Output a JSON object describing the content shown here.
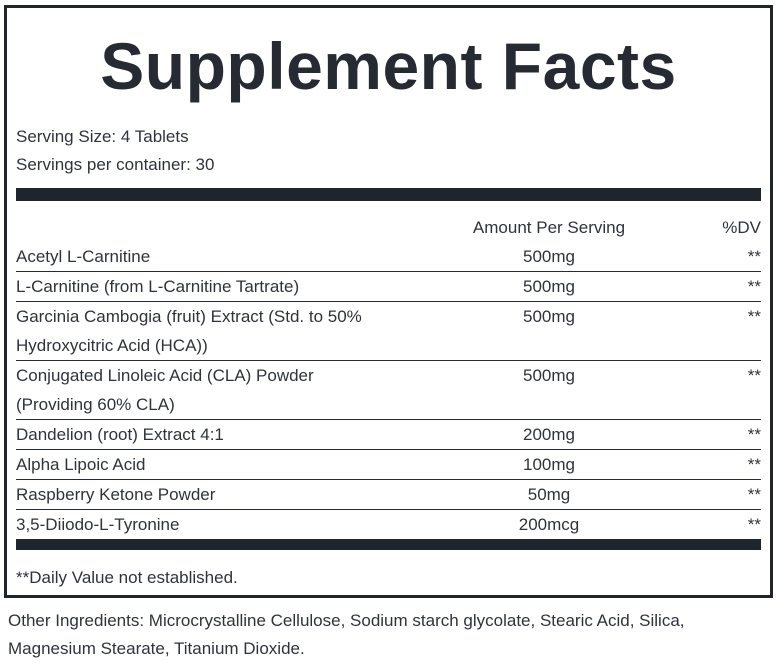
{
  "label": {
    "title": "Supplement Facts",
    "serving": {
      "size": "Serving Size: 4 Tablets",
      "per_container": "Servings per container: 30"
    },
    "table": {
      "amount_header": "Amount Per Serving",
      "dv_header": "%DV",
      "rows": [
        {
          "name": "Acetyl L-Carnitine",
          "name_lines": [
            "Acetyl L-Carnitine"
          ],
          "amount": "500mg",
          "dv": "**"
        },
        {
          "name": "L-Carnitine (from L-Carnitine Tartrate)",
          "name_lines": [
            "L-Carnitine (from L-Carnitine Tartrate)"
          ],
          "amount": "500mg",
          "dv": "**"
        },
        {
          "name": "Garcinia Cambogia (fruit) Extract (Std. to 50% Hydroxycitric Acid (HCA))",
          "name_lines": [
            "Garcinia Cambogia (fruit) Extract (Std. to 50%",
            "Hydroxycitric Acid (HCA))"
          ],
          "amount": "500mg",
          "dv": "**"
        },
        {
          "name": "Conjugated Linoleic Acid (CLA) Powder (Providing 60% CLA)",
          "name_lines": [
            "Conjugated Linoleic Acid (CLA) Powder",
            "(Providing 60% CLA)"
          ],
          "amount": "500mg",
          "dv": "**"
        },
        {
          "name": "Dandelion (root) Extract 4:1",
          "name_lines": [
            "Dandelion (root) Extract 4:1"
          ],
          "amount": "200mg",
          "dv": "**"
        },
        {
          "name": "Alpha Lipoic Acid",
          "name_lines": [
            "Alpha Lipoic Acid"
          ],
          "amount": "100mg",
          "dv": "**"
        },
        {
          "name": "Raspberry Ketone Powder",
          "name_lines": [
            "Raspberry Ketone Powder"
          ],
          "amount": "50mg",
          "dv": "**"
        },
        {
          "name": "3,5-Diiodo-L-Tyronine",
          "name_lines": [
            "3,5-Diiodo-L-Tyronine"
          ],
          "amount": "200mcg",
          "dv": "**"
        }
      ]
    },
    "footnote": "**Daily Value not established.",
    "other_ingredients": "Other Ingredients: Microcrystalline Cellulose, Sodium starch glycolate, Stearic Acid, Silica, Magnesium Stearate, Titanium Dioxide.",
    "colors": {
      "ink": "#2e333c",
      "heavy": "#20242c",
      "rule": "#262a32"
    }
  }
}
